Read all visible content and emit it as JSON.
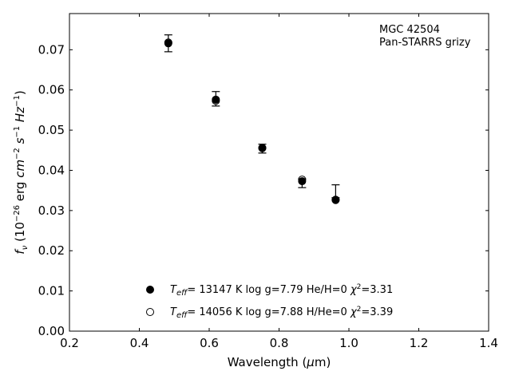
{
  "chart_data": {
    "type": "scatter",
    "xlabel": "Wavelength (μm)",
    "ylabel": "f_ν (10^-26 erg cm^-2 s^-1 Hz^-1)",
    "xlim": [
      0.2,
      1.4
    ],
    "ylim": [
      0.0,
      0.079
    ],
    "x_ticks": [
      "0.2",
      "0.4",
      "0.6",
      "0.8",
      "1.0",
      "1.2",
      "1.4"
    ],
    "y_ticks": [
      "0.00",
      "0.01",
      "0.02",
      "0.03",
      "0.04",
      "0.05",
      "0.06",
      "0.07"
    ],
    "grid": false,
    "annotation": [
      "MGC 42504",
      "Pan-STARRS grizy"
    ],
    "observed": {
      "x": [
        0.483,
        0.619,
        0.752,
        0.866,
        0.962
      ],
      "y": [
        0.0716,
        0.0578,
        0.0454,
        0.0368,
        0.0348
      ],
      "err": [
        0.0021,
        0.0018,
        0.0011,
        0.0011,
        0.0016
      ]
    },
    "series": [
      {
        "name": "T_eff= 13147 K  log g=7.79  He/H=0  χ²=3.31",
        "marker": "filled-circle",
        "x": [
          0.483,
          0.619,
          0.752,
          0.866,
          0.962
        ],
        "y": [
          0.0716,
          0.0576,
          0.0456,
          0.0373,
          0.0326
        ]
      },
      {
        "name": "T_eff= 14056 K  log g=7.88  H/He=0  χ²=3.39",
        "marker": "open-circle",
        "x": [
          0.483,
          0.619,
          0.752,
          0.866,
          0.962
        ],
        "y": [
          0.0718,
          0.0573,
          0.0455,
          0.0377,
          0.0327
        ]
      }
    ],
    "legend": [
      {
        "marker": "filled-circle",
        "teff": "13147 K",
        "logg": "log g=7.79",
        "comp": "He/H=0",
        "chi2": "3.31"
      },
      {
        "marker": "open-circle",
        "teff": "14056 K",
        "logg": "log g=7.88",
        "comp": "H/He=0",
        "chi2": "3.39"
      }
    ],
    "legend_placement": "lower-center"
  }
}
